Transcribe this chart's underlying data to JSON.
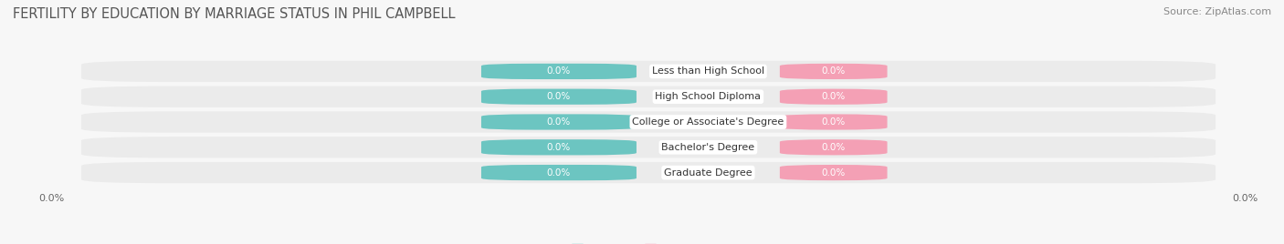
{
  "title": "FERTILITY BY EDUCATION BY MARRIAGE STATUS IN PHIL CAMPBELL",
  "source": "Source: ZipAtlas.com",
  "categories": [
    "Less than High School",
    "High School Diploma",
    "College or Associate's Degree",
    "Bachelor's Degree",
    "Graduate Degree"
  ],
  "married_values": [
    0.0,
    0.0,
    0.0,
    0.0,
    0.0
  ],
  "unmarried_values": [
    0.0,
    0.0,
    0.0,
    0.0,
    0.0
  ],
  "married_color": "#6CC5C1",
  "unmarried_color": "#F4A0B5",
  "row_bg_color": "#EBEBEB",
  "fig_bg_color": "#F7F7F7",
  "category_label_color": "#333333",
  "title_color": "#555555",
  "title_fontsize": 10.5,
  "source_fontsize": 8,
  "tick_fontsize": 8,
  "cat_fontsize": 8,
  "val_fontsize": 7.5,
  "legend_fontsize": 9
}
